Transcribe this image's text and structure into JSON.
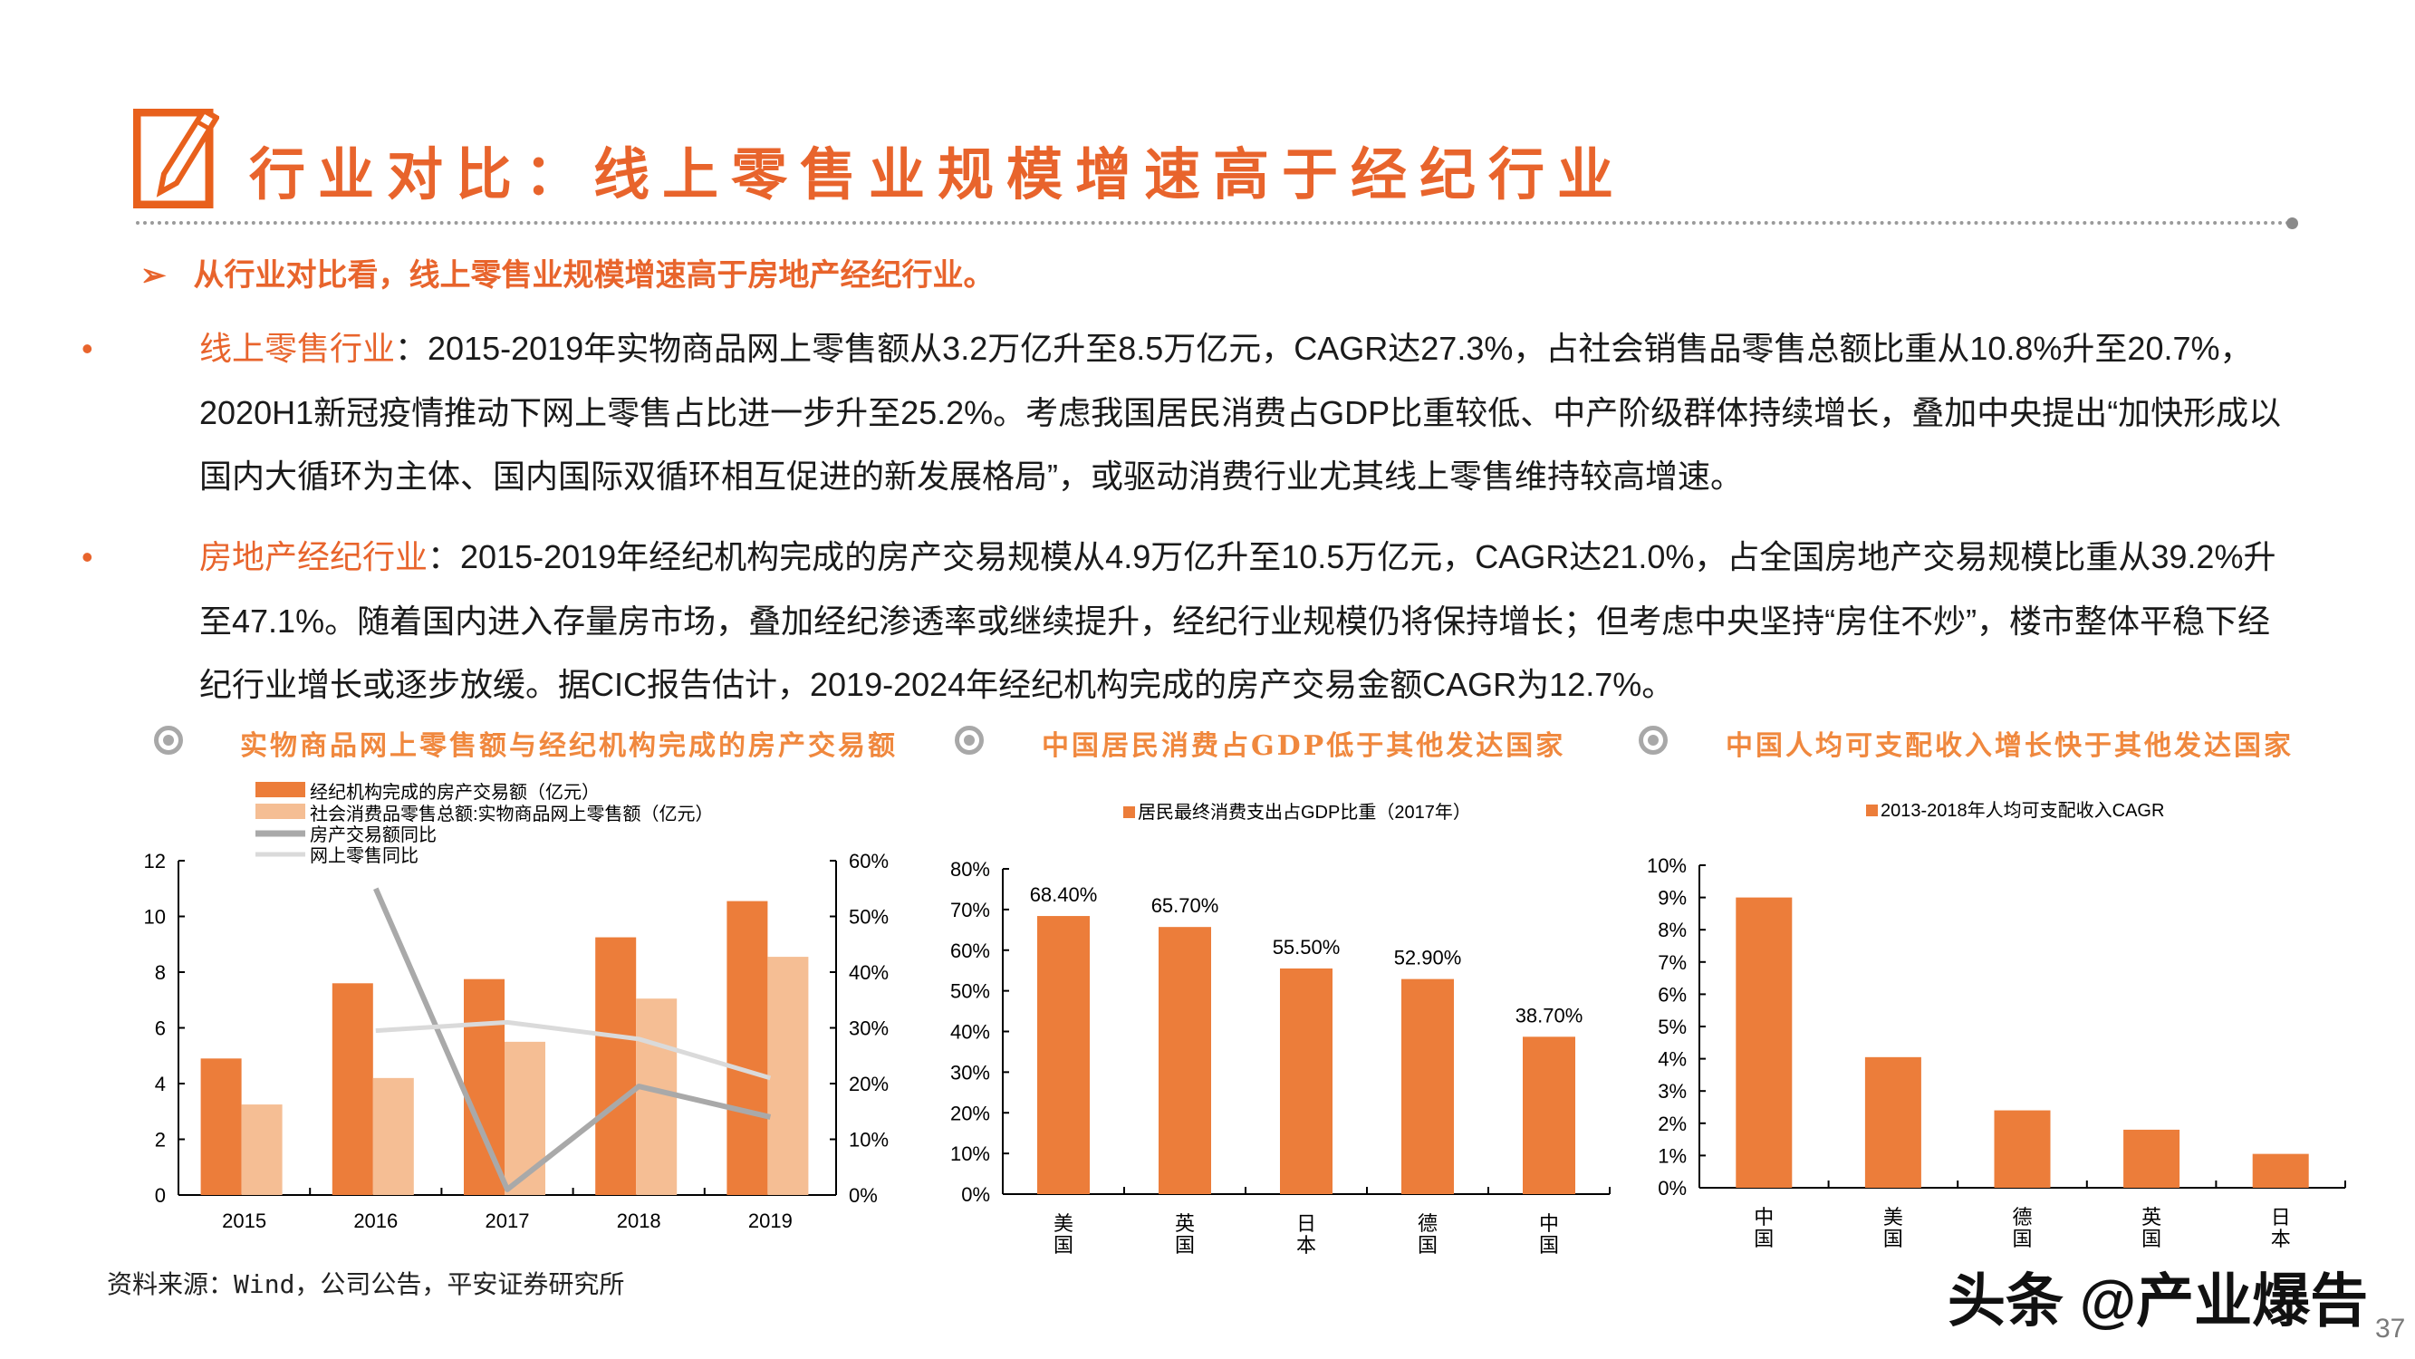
{
  "header": {
    "title": "行业对比：线上零售业规模增速高于经纪行业",
    "icon": "edit-pencil-icon",
    "accent": "#E8642C"
  },
  "subheading": {
    "arrow": "➢",
    "text": "从行业对比看，线上零售业规模增速高于房地产经纪行业。"
  },
  "bullets": [
    {
      "marker": "•",
      "label": "线上零售行业",
      "text": "：2015-2019年实物商品网上零售额从3.2万亿升至8.5万亿元，CAGR达27.3%，占社会销售品零售总额比重从10.8%升至20.7%，2020H1新冠疫情推动下网上零售占比进一步升至25.2%。考虑我国居民消费占GDP比重较低、中产阶级群体持续增长，叠加中央提出“加快形成以国内大循环为主体、国内国际双循环相互促进的新发展格局”，或驱动消费行业尤其线上零售维持较高增速。"
    },
    {
      "marker": "•",
      "label": "房地产经纪行业",
      "text": "：2015-2019年经纪机构完成的房产交易规模从4.9万亿升至10.5万亿元，CAGR达21.0%，占全国房地产交易规模比重从39.2%升至47.1%。随着国内进入存量房市场，叠加经纪渗透率或继续提升，经纪行业规模仍将保持增长；但考虑中央坚持“房住不炒”，楼市整体平稳下经纪行业增长或逐步放缓。据CIC报告估计，2019-2024年经纪机构完成的房产交易金额CAGR为12.7%。"
    }
  ],
  "sections": [
    {
      "title": "实物商品网上零售额与经纪机构完成的房产交易额"
    },
    {
      "title": "中国居民消费占GDP低于其他发达国家"
    },
    {
      "title": "中国人均可支配收入增长快于其他发达国家"
    }
  ],
  "chart_data": [
    {
      "type": "bar+line",
      "categories": [
        "2015",
        "2016",
        "2017",
        "2018",
        "2019"
      ],
      "ylim": [
        0,
        12
      ],
      "yticks": [
        "0",
        "2",
        "4",
        "6",
        "8",
        "10",
        "12"
      ],
      "y2lim": [
        0,
        0.6
      ],
      "y2ticks": [
        "0%",
        "10%",
        "20%",
        "30%",
        "40%",
        "50%",
        "60%"
      ],
      "legend": "top-left",
      "series": [
        {
          "name": "经纪机构完成的房产交易额（亿元）",
          "type": "bar",
          "axis": "left",
          "color": "#EC7D3A",
          "values": [
            4.9,
            7.6,
            7.75,
            9.25,
            10.55
          ]
        },
        {
          "name": "社会消费品零售总额:实物商品网上零售额（亿元）",
          "type": "bar",
          "axis": "left",
          "color": "#F5BE94",
          "values": [
            3.25,
            4.2,
            5.5,
            7.05,
            8.55
          ]
        },
        {
          "name": "房产交易额同比",
          "type": "line",
          "axis": "right",
          "color": "#A9A9A9",
          "values": [
            null,
            0.55,
            0.01,
            0.195,
            0.14
          ]
        },
        {
          "name": "网上零售同比",
          "type": "line",
          "axis": "right",
          "color": "#DADADA",
          "values": [
            null,
            0.295,
            0.31,
            0.28,
            0.21
          ]
        }
      ]
    },
    {
      "type": "bar",
      "categories": [
        "美国",
        "英国",
        "日本",
        "德国",
        "中国"
      ],
      "ylim": [
        0,
        0.8
      ],
      "yticks": [
        "0%",
        "10%",
        "20%",
        "30%",
        "40%",
        "50%",
        "60%",
        "70%",
        "80%"
      ],
      "legend": "top",
      "series": [
        {
          "name": "居民最终消费支出占GDP比重（2017年）",
          "color": "#EC7D3A",
          "values": [
            0.684,
            0.657,
            0.555,
            0.529,
            0.387
          ],
          "labels": [
            "68.40%",
            "65.70%",
            "55.50%",
            "52.90%",
            "38.70%"
          ]
        }
      ]
    },
    {
      "type": "bar",
      "categories": [
        "中国",
        "美国",
        "德国",
        "英国",
        "日本"
      ],
      "ylim": [
        0,
        0.1
      ],
      "yticks": [
        "0%",
        "1%",
        "2%",
        "3%",
        "4%",
        "5%",
        "6%",
        "7%",
        "8%",
        "9%",
        "10%"
      ],
      "legend": "top",
      "series": [
        {
          "name": "2013-2018年人均可支配收入CAGR",
          "color": "#EC7D3A",
          "values": [
            0.09,
            0.0405,
            0.024,
            0.018,
            0.0105
          ]
        }
      ]
    }
  ],
  "footer": {
    "source": "资料来源：Wind，公司公告，平安证券研究所",
    "watermark": "头条 @产业爆告",
    "page": "37"
  }
}
